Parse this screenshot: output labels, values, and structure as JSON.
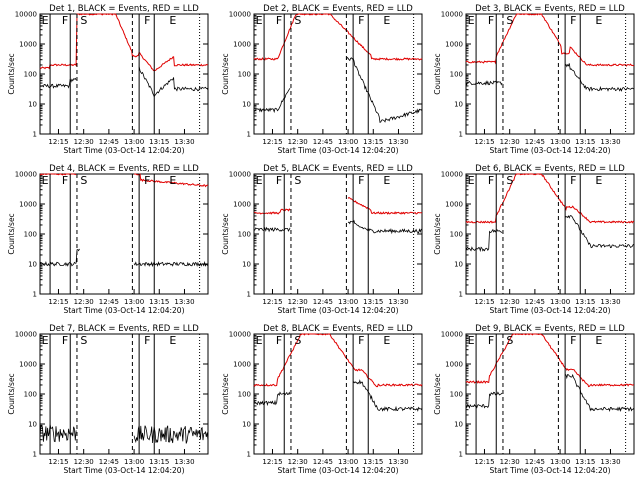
{
  "chart_data": [
    {
      "type": "line",
      "title": "Det 1, BLACK = Events, RED = LLD",
      "segments": [
        "E",
        "F",
        "S",
        "F",
        "E"
      ],
      "has_black": true,
      "has_red": true
    },
    {
      "type": "line",
      "title": "Det 2, BLACK = Events, RED = LLD",
      "segments": [
        "E",
        "F",
        "S",
        "F",
        "E"
      ],
      "has_black": true,
      "has_red": true
    },
    {
      "type": "line",
      "title": "Det 3, BLACK = Events, RED = LLD",
      "segments": [
        "E",
        "F",
        "S",
        "F",
        "E"
      ],
      "has_black": true,
      "has_red": true
    },
    {
      "type": "line",
      "title": "Det 4, BLACK = Events, RED = LLD",
      "segments": [
        "E",
        "F",
        "S",
        "F",
        "E"
      ],
      "has_black": true,
      "has_red": true
    },
    {
      "type": "line",
      "title": "Det 5, BLACK = Events, RED = LLD",
      "segments": [
        "E",
        "F",
        "S",
        "F",
        "E"
      ],
      "has_black": true,
      "has_red": true
    },
    {
      "type": "line",
      "title": "Det 6, BLACK = Events, RED = LLD",
      "segments": [
        "E",
        "F",
        "S",
        "F",
        "E"
      ],
      "has_black": true,
      "has_red": true
    },
    {
      "type": "line",
      "title": "Det 7, BLACK = Events, RED = LLD",
      "segments": [
        "E",
        "F",
        "S",
        "F",
        "E"
      ],
      "has_black": true,
      "has_red": false
    },
    {
      "type": "line",
      "title": "Det 8, BLACK = Events, RED = LLD",
      "segments": [
        "E",
        "F",
        "S",
        "F",
        "E"
      ],
      "has_black": true,
      "has_red": true
    },
    {
      "type": "line",
      "title": "Det 9, BLACK = Events, RED = LLD",
      "segments": [
        "E",
        "F",
        "S",
        "F",
        "E"
      ],
      "has_black": true,
      "has_red": true
    }
  ],
  "common": {
    "ylabel": "Counts/sec",
    "xlabel": "Start Time (03-Oct-14 12:04:20)",
    "xticks": [
      "12:15",
      "12:30",
      "12:45",
      "13:00",
      "13:15",
      "13:30"
    ],
    "yticks": [
      "1",
      "10",
      "100",
      "1000",
      "10000"
    ],
    "xrange_minutes": [
      0,
      100
    ],
    "xtick_minutes": [
      11,
      26,
      41,
      56,
      71,
      86
    ],
    "boundaries_minutes": {
      "solid": [
        6,
        18,
        59,
        68
      ],
      "dashed": [
        22,
        55
      ],
      "dotted": [
        95
      ]
    },
    "yscale": "log",
    "ylim": [
      1,
      10000
    ],
    "colors": {
      "black_series": "#000000",
      "red_series": "#e00000"
    }
  }
}
